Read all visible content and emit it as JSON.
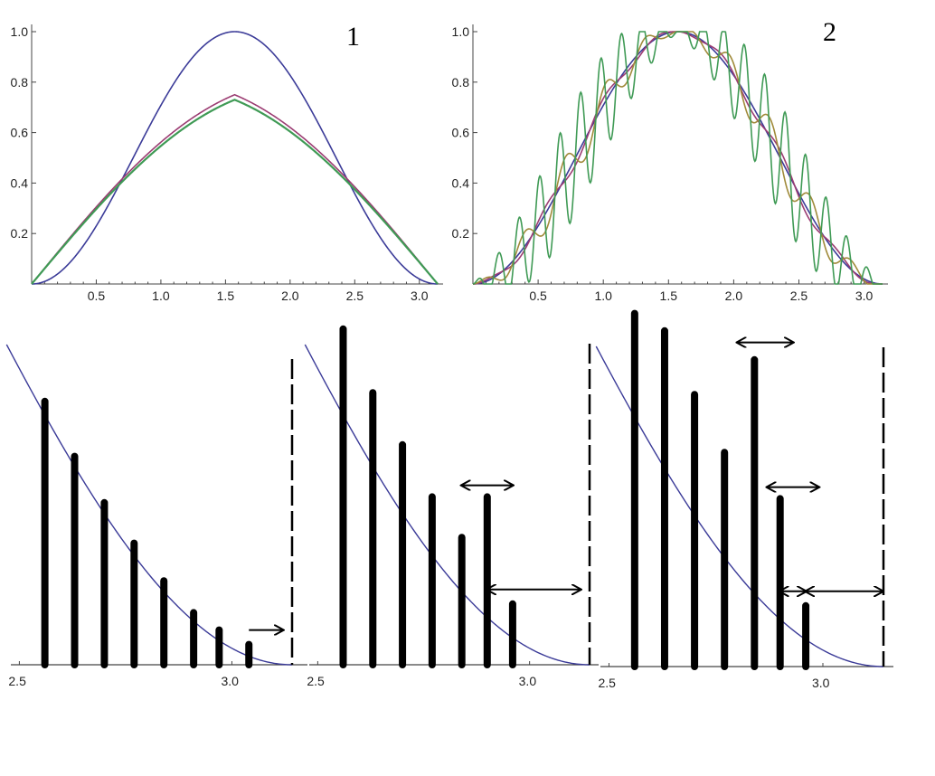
{
  "chart_data": [
    {
      "type": "line",
      "panel_label": "1",
      "xlim": [
        0,
        3.1416
      ],
      "ylim": [
        0,
        1.0
      ],
      "x_ticks": [
        "0.5",
        "1.0",
        "1.5",
        "2.0",
        "2.5",
        "3.0"
      ],
      "x_tick_values": [
        0.5,
        1.0,
        1.5,
        2.0,
        2.5,
        3.0
      ],
      "y_ticks": [
        "0.2",
        "0.4",
        "0.6",
        "0.8",
        "1.0"
      ],
      "y_tick_values": [
        0.2,
        0.4,
        0.6,
        0.8,
        1.0
      ],
      "series": [
        {
          "color": "#3b3b98",
          "function": "sin2",
          "peak": 1.0
        },
        {
          "color": "#9b3c72",
          "function": "blend",
          "peak": 0.75
        },
        {
          "color": "#3f9a55",
          "function": "blend",
          "peak": 0.73
        }
      ]
    },
    {
      "type": "line",
      "panel_label": "2",
      "xlim": [
        0,
        3.1416
      ],
      "ylim": [
        0,
        1.0
      ],
      "x_ticks": [
        "0.5",
        "1.0",
        "1.5",
        "2.0",
        "2.5",
        "3.0"
      ],
      "x_tick_values": [
        0.5,
        1.0,
        1.5,
        2.0,
        2.5,
        3.0
      ],
      "y_ticks": [
        "0.2",
        "0.4",
        "0.6",
        "0.8",
        "1.0"
      ],
      "y_tick_values": [
        0.2,
        0.4,
        0.6,
        0.8,
        1.0
      ],
      "series": [
        {
          "color": "#3b3b98",
          "function": "sin2",
          "ripple": 0
        },
        {
          "color": "#9b3c72",
          "function": "ripple",
          "ripple": 0.03,
          "freq": 14
        },
        {
          "color": "#a08a3a",
          "function": "ripple",
          "ripple": 0.08,
          "freq": 20
        },
        {
          "color": "#3f9a55",
          "function": "ripple",
          "ripple": 0.22,
          "freq": 40
        }
      ]
    },
    {
      "type": "line",
      "xlim": [
        2.5,
        3.1416
      ],
      "x_ticks": [
        "2.5",
        "3.0"
      ],
      "x_tick_values": [
        2.5,
        3.0
      ],
      "curve_color": "#3b3b98",
      "bars": [
        {
          "x": 2.56,
          "top": 0.91,
          "bottom": 0.0
        },
        {
          "x": 2.63,
          "top": 0.72,
          "bottom": 0.0
        },
        {
          "x": 2.7,
          "top": 0.56,
          "bottom": 0.0
        },
        {
          "x": 2.77,
          "top": 0.42,
          "bottom": 0.0
        },
        {
          "x": 2.84,
          "top": 0.29,
          "bottom": 0.0
        },
        {
          "x": 2.91,
          "top": 0.18,
          "bottom": 0.0
        },
        {
          "x": 2.97,
          "top": 0.12,
          "bottom": 0.0
        },
        {
          "x": 3.04,
          "top": 0.07,
          "bottom": 0.0
        }
      ],
      "arrows": [
        {
          "x1": 3.04,
          "x2": 3.12,
          "y": 0.12,
          "double": false
        }
      ]
    },
    {
      "type": "line",
      "xlim": [
        2.5,
        3.1416
      ],
      "x_ticks": [
        "2.5",
        "3.0"
      ],
      "x_tick_values": [
        2.5,
        3.0
      ],
      "curve_color": "#3b3b98",
      "bars": [
        {
          "x": 2.56,
          "top": 1.16,
          "bottom": 0.0
        },
        {
          "x": 2.63,
          "top": 0.94,
          "bottom": 0.0
        },
        {
          "x": 2.7,
          "top": 0.76,
          "bottom": 0.0
        },
        {
          "x": 2.77,
          "top": 0.58,
          "bottom": 0.0
        },
        {
          "x": 2.84,
          "top": 0.44,
          "bottom": 0.0
        },
        {
          "x": 2.9,
          "top": 0.58,
          "bottom": 0.0
        },
        {
          "x": 2.96,
          "top": 0.21,
          "bottom": 0.0
        }
      ],
      "arrows": [
        {
          "x1": 2.84,
          "x2": 2.96,
          "y": 0.62,
          "double": true
        },
        {
          "x1": 2.9,
          "x2": 3.12,
          "y": 0.26,
          "double": true
        }
      ]
    },
    {
      "type": "line",
      "xlim": [
        2.5,
        3.1416
      ],
      "x_ticks": [
        "2.5",
        "3.0"
      ],
      "x_tick_values": [
        2.5,
        3.0
      ],
      "curve_color": "#3b3b98",
      "bars": [
        {
          "x": 2.56,
          "top": 1.22,
          "bottom": 0.0
        },
        {
          "x": 2.63,
          "top": 1.16,
          "bottom": 0.0
        },
        {
          "x": 2.7,
          "top": 0.94,
          "bottom": 0.0
        },
        {
          "x": 2.77,
          "top": 0.74,
          "bottom": 0.0
        },
        {
          "x": 2.84,
          "top": 1.06,
          "bottom": 0.0
        },
        {
          "x": 2.9,
          "top": 0.58,
          "bottom": 0.0
        },
        {
          "x": 2.96,
          "top": 0.21,
          "bottom": 0.0
        }
      ],
      "arrows": [
        {
          "x1": 2.8,
          "x2": 2.93,
          "y": 1.12,
          "double": true
        },
        {
          "x1": 2.87,
          "x2": 2.99,
          "y": 0.62,
          "double": true
        },
        {
          "x1": 2.9,
          "x2": 2.96,
          "y": 0.26,
          "double": true
        },
        {
          "x1": 2.96,
          "x2": 3.14,
          "y": 0.26,
          "double": true
        }
      ]
    }
  ]
}
